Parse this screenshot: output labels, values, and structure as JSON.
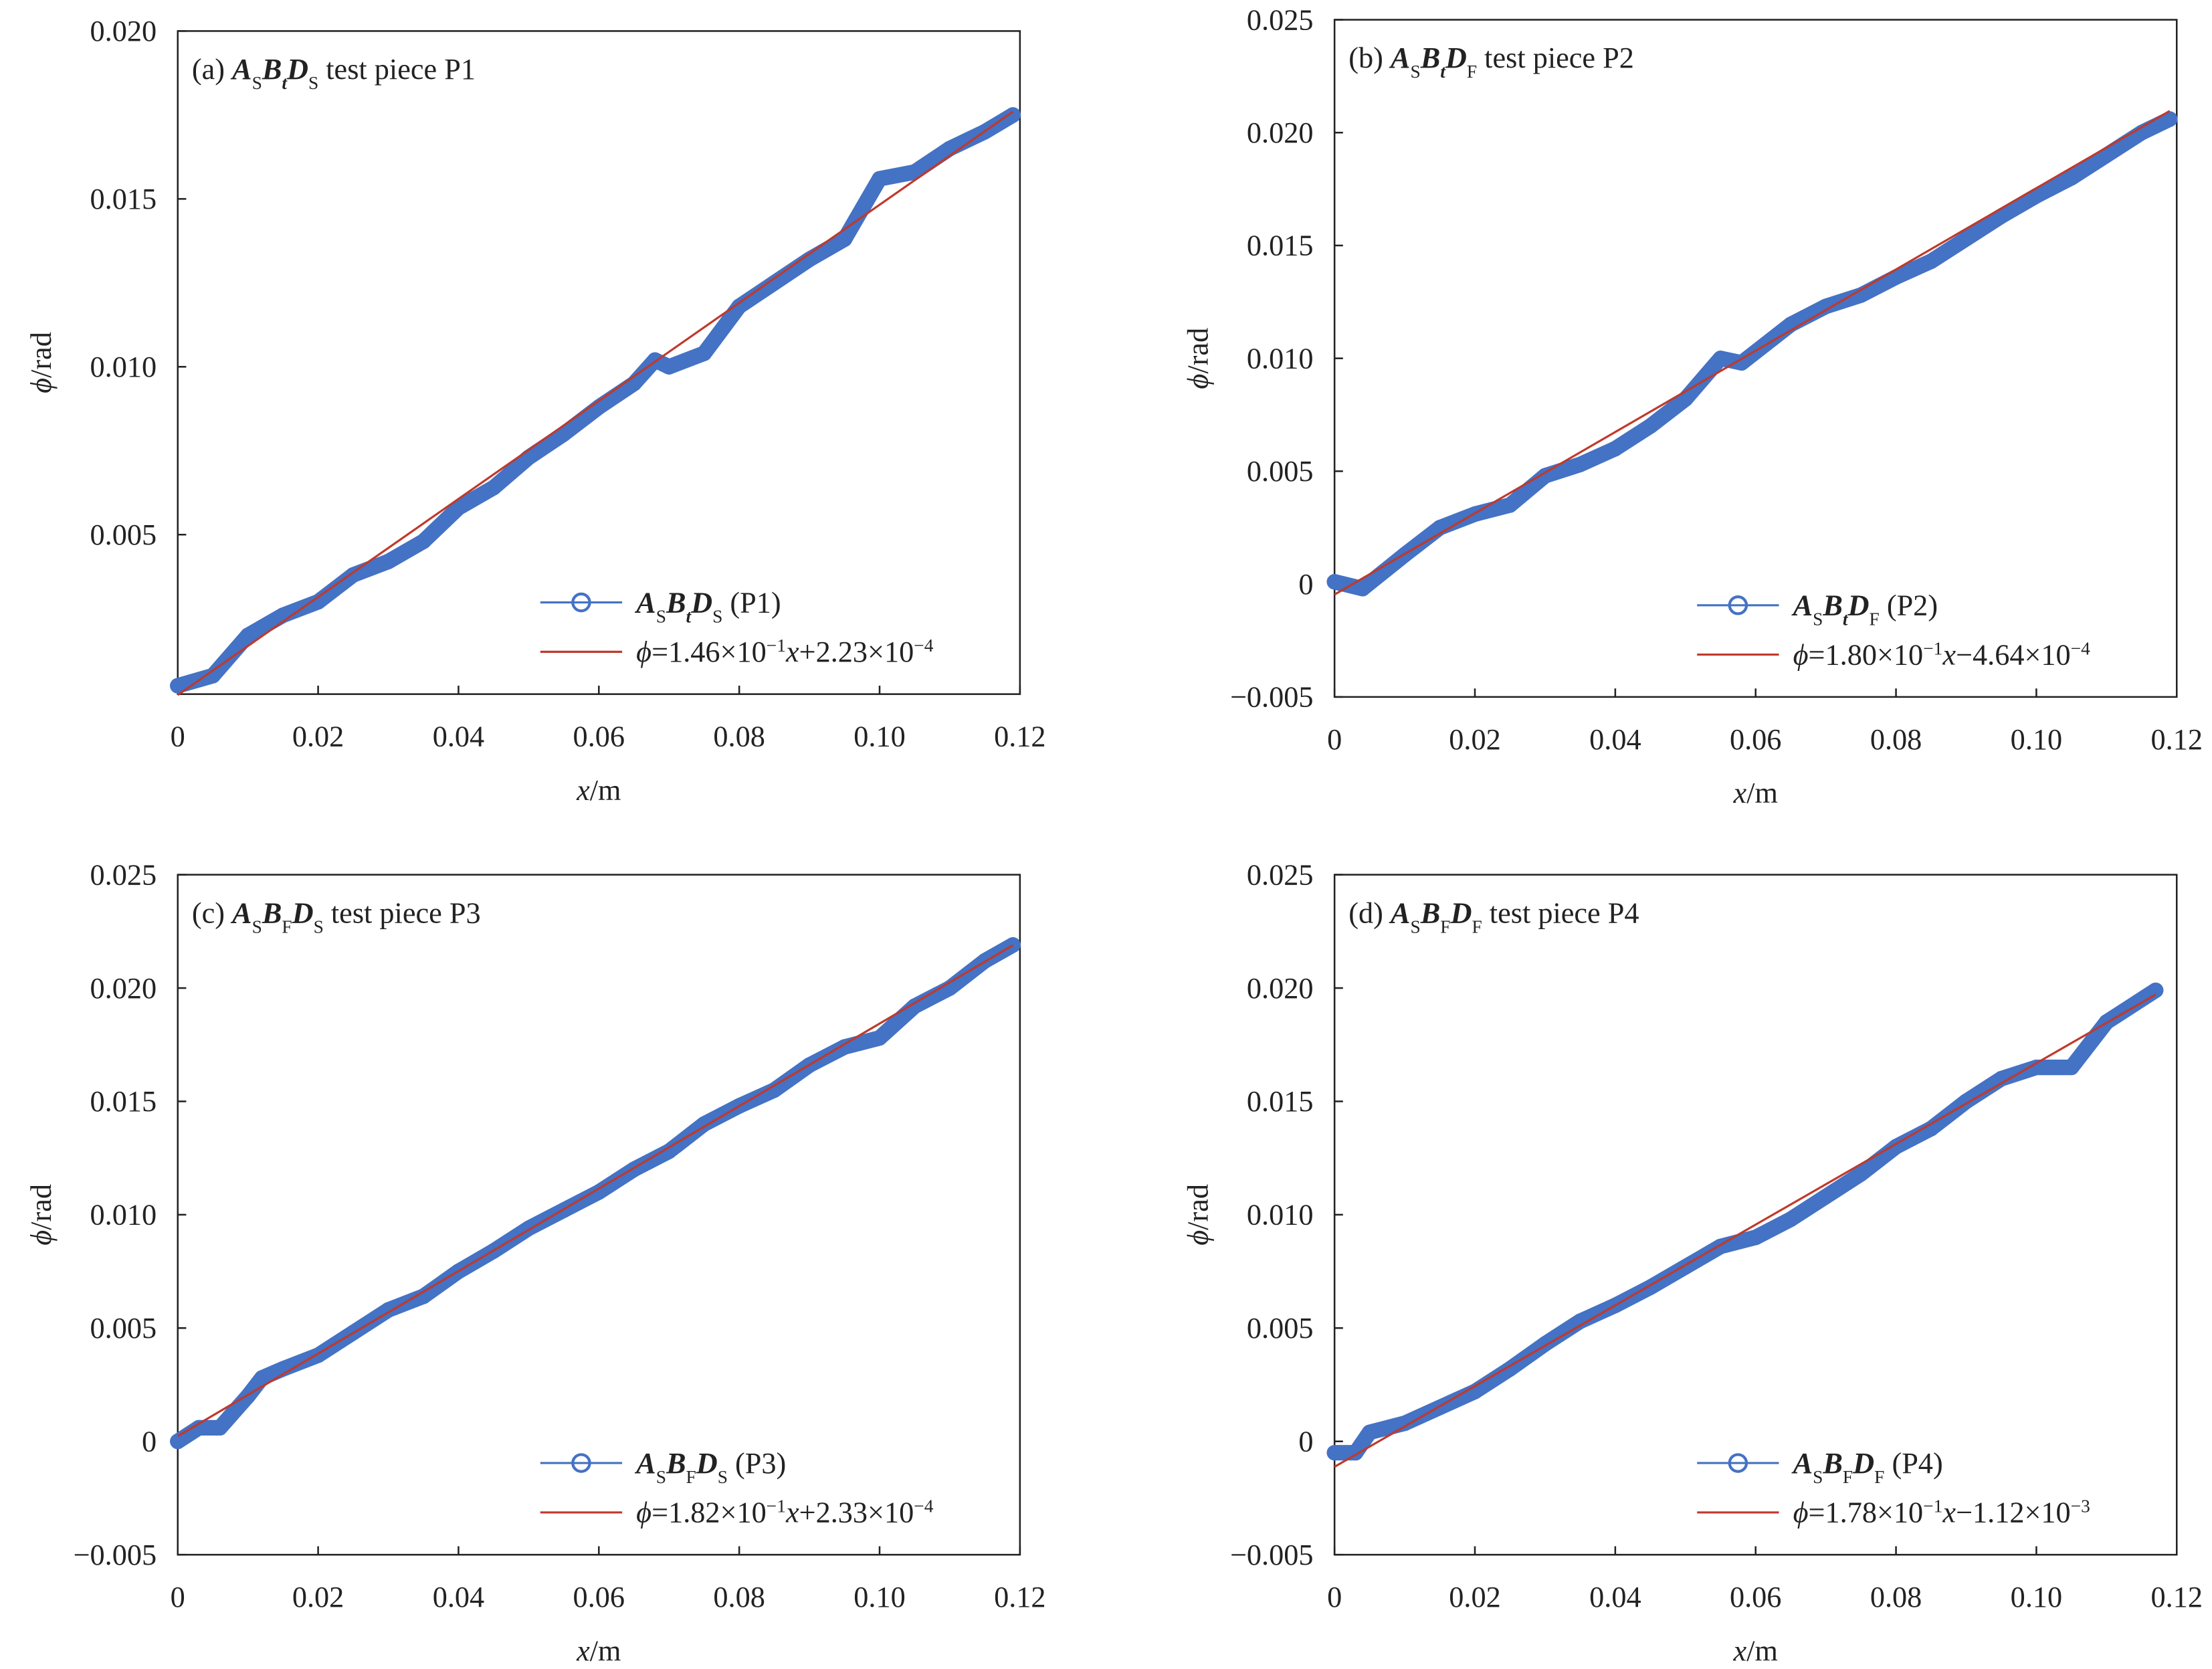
{
  "chart_data": [
    {
      "type": "line",
      "title": [
        {
          "text": "(a) "
        },
        {
          "text": "A",
          "style": "bi"
        },
        {
          "text": "S",
          "style": "sub"
        },
        {
          "text": "B",
          "style": "bi"
        },
        {
          "text": "t",
          "style": "isub"
        },
        {
          "text": "D",
          "style": "bi"
        },
        {
          "text": "S",
          "style": "sub"
        },
        {
          "text": " test piece P1"
        }
      ],
      "xlabel": [
        {
          "text": "x",
          "style": "i"
        },
        {
          "text": "/m"
        }
      ],
      "ylabel": [
        {
          "text": "ϕ",
          "style": "i"
        },
        {
          "text": "/rad"
        }
      ],
      "xlim": [
        0,
        0.12
      ],
      "ylim": [
        0.00025,
        0.02
      ],
      "xticks": [
        0,
        0.02,
        0.04,
        0.06,
        0.08,
        {
          "value": 0.1,
          "label": "0.10"
        },
        0.12
      ],
      "yticks": [
        0.005,
        {
          "value": 0.01,
          "label": "0.010"
        },
        0.015,
        {
          "value": 0.02,
          "label": "0.020"
        }
      ],
      "series": [
        {
          "name": [
            {
              "text": "A",
              "style": "bi"
            },
            {
              "text": "S",
              "style": "sub"
            },
            {
              "text": "B",
              "style": "bi"
            },
            {
              "text": "t",
              "style": "isub"
            },
            {
              "text": "D",
              "style": "bi"
            },
            {
              "text": "S",
              "style": "sub"
            },
            {
              "text": " (P1)"
            }
          ],
          "color": "#4472c4",
          "marker": "circle",
          "x": [
            0,
            0.005,
            0.01,
            0.015,
            0.02,
            0.025,
            0.03,
            0.035,
            0.04,
            0.045,
            0.05,
            0.055,
            0.06,
            0.065,
            0.068,
            0.07,
            0.075,
            0.08,
            0.085,
            0.09,
            0.095,
            0.1,
            0.105,
            0.11,
            0.115,
            0.119
          ],
          "values": [
            0.0005,
            0.0008,
            0.002,
            0.0026,
            0.003,
            0.0038,
            0.0042,
            0.0048,
            0.0058,
            0.0064,
            0.0073,
            0.008,
            0.0088,
            0.0095,
            0.0102,
            0.01,
            0.0104,
            0.0118,
            0.0125,
            0.0132,
            0.0138,
            0.0156,
            0.0158,
            0.0165,
            0.017,
            0.0175
          ]
        },
        {
          "name": [
            {
              "text": "ϕ",
              "style": "i"
            },
            {
              "text": "=1.46×10"
            },
            {
              "text": "−1",
              "style": "sup"
            },
            {
              "text": "x",
              "style": "i"
            },
            {
              "text": "+2.23×10"
            },
            {
              "text": "−4",
              "style": "sup"
            }
          ],
          "color": "#c0392b",
          "x": [
            0,
            0.119
          ],
          "values": [
            0.000223,
            0.0176
          ]
        }
      ]
    },
    {
      "type": "line",
      "title": [
        {
          "text": "(b) "
        },
        {
          "text": "A",
          "style": "bi"
        },
        {
          "text": "S",
          "style": "sub"
        },
        {
          "text": "B",
          "style": "bi"
        },
        {
          "text": "t",
          "style": "isub"
        },
        {
          "text": "D",
          "style": "bi"
        },
        {
          "text": "F",
          "style": "sub"
        },
        {
          "text": " test piece P2"
        }
      ],
      "xlabel": [
        {
          "text": "x",
          "style": "i"
        },
        {
          "text": "/m"
        }
      ],
      "ylabel": [
        {
          "text": "ϕ",
          "style": "i"
        },
        {
          "text": "/rad"
        }
      ],
      "xlim": [
        0,
        0.12
      ],
      "ylim": [
        -0.005,
        0.025
      ],
      "xticks": [
        0,
        0.02,
        0.04,
        0.06,
        0.08,
        {
          "value": 0.1,
          "label": "0.10"
        },
        0.12
      ],
      "yticks": [
        {
          "value": -0.005,
          "label": "−0.005"
        },
        0,
        0.005,
        {
          "value": 0.01,
          "label": "0.010"
        },
        0.015,
        {
          "value": 0.02,
          "label": "0.020"
        },
        0.025
      ],
      "series": [
        {
          "name": [
            {
              "text": "A",
              "style": "bi"
            },
            {
              "text": "S",
              "style": "sub"
            },
            {
              "text": "B",
              "style": "bi"
            },
            {
              "text": "t",
              "style": "isub"
            },
            {
              "text": "D",
              "style": "bi"
            },
            {
              "text": "F",
              "style": "sub"
            },
            {
              "text": " (P2)"
            }
          ],
          "color": "#4472c4",
          "marker": "circle",
          "x": [
            0,
            0.004,
            0.01,
            0.015,
            0.02,
            0.025,
            0.03,
            0.035,
            0.04,
            0.045,
            0.05,
            0.055,
            0.058,
            0.065,
            0.07,
            0.075,
            0.08,
            0.085,
            0.09,
            0.095,
            0.1,
            0.105,
            0.11,
            0.115,
            0.119
          ],
          "values": [
            0.0001,
            -0.0002,
            0.0013,
            0.0025,
            0.0031,
            0.0035,
            0.0048,
            0.0053,
            0.006,
            0.007,
            0.0082,
            0.01,
            0.0098,
            0.0115,
            0.0123,
            0.0128,
            0.0136,
            0.0143,
            0.0153,
            0.0163,
            0.0172,
            0.018,
            0.019,
            0.02,
            0.0206
          ]
        },
        {
          "name": [
            {
              "text": "ϕ",
              "style": "i"
            },
            {
              "text": "=1.80×10"
            },
            {
              "text": "−1",
              "style": "sup"
            },
            {
              "text": "x",
              "style": "i"
            },
            {
              "text": "−4.64×10"
            },
            {
              "text": "−4",
              "style": "sup"
            }
          ],
          "color": "#c0392b",
          "x": [
            0,
            0.119
          ],
          "values": [
            -0.000464,
            0.02096
          ]
        }
      ]
    },
    {
      "type": "line",
      "title": [
        {
          "text": "(c) "
        },
        {
          "text": "A",
          "style": "bi"
        },
        {
          "text": "S",
          "style": "sub"
        },
        {
          "text": "B",
          "style": "bi"
        },
        {
          "text": "F",
          "style": "sub"
        },
        {
          "text": "D",
          "style": "bi"
        },
        {
          "text": "S",
          "style": "sub"
        },
        {
          "text": " test piece P3"
        }
      ],
      "xlabel": [
        {
          "text": "x",
          "style": "i"
        },
        {
          "text": "/m"
        }
      ],
      "ylabel": [
        {
          "text": "ϕ",
          "style": "i"
        },
        {
          "text": "/rad"
        }
      ],
      "xlim": [
        0,
        0.12
      ],
      "ylim": [
        -0.005,
        0.025
      ],
      "xticks": [
        0,
        0.02,
        0.04,
        0.06,
        0.08,
        {
          "value": 0.1,
          "label": "0.10"
        },
        0.12
      ],
      "yticks": [
        {
          "value": -0.005,
          "label": "−0.005"
        },
        0,
        0.005,
        {
          "value": 0.01,
          "label": "0.010"
        },
        0.015,
        {
          "value": 0.02,
          "label": "0.020"
        },
        0.025
      ],
      "series": [
        {
          "name": [
            {
              "text": "A",
              "style": "bi"
            },
            {
              "text": "S",
              "style": "sub"
            },
            {
              "text": "B",
              "style": "bi"
            },
            {
              "text": "F",
              "style": "sub"
            },
            {
              "text": "D",
              "style": "bi"
            },
            {
              "text": "S",
              "style": "sub"
            },
            {
              "text": " (P3)"
            }
          ],
          "color": "#4472c4",
          "marker": "circle",
          "x": [
            0,
            0.003,
            0.006,
            0.01,
            0.012,
            0.015,
            0.02,
            0.025,
            0.03,
            0.035,
            0.04,
            0.045,
            0.05,
            0.055,
            0.06,
            0.065,
            0.07,
            0.075,
            0.08,
            0.085,
            0.09,
            0.095,
            0.1,
            0.105,
            0.11,
            0.115,
            0.119
          ],
          "values": [
            0,
            0.0006,
            0.0006,
            0.002,
            0.0028,
            0.0032,
            0.0038,
            0.0048,
            0.0058,
            0.0064,
            0.0075,
            0.0084,
            0.0094,
            0.0102,
            0.011,
            0.012,
            0.0128,
            0.014,
            0.0148,
            0.0155,
            0.0166,
            0.0174,
            0.0178,
            0.0192,
            0.02,
            0.0212,
            0.0219
          ]
        },
        {
          "name": [
            {
              "text": "ϕ",
              "style": "i"
            },
            {
              "text": "=1.82×10"
            },
            {
              "text": "−1",
              "style": "sup"
            },
            {
              "text": "x",
              "style": "i"
            },
            {
              "text": "+2.33×10"
            },
            {
              "text": "−4",
              "style": "sup"
            }
          ],
          "color": "#c0392b",
          "x": [
            0,
            0.119
          ],
          "values": [
            0.000233,
            0.02189
          ]
        }
      ]
    },
    {
      "type": "line",
      "title": [
        {
          "text": "(d) "
        },
        {
          "text": "A",
          "style": "bi"
        },
        {
          "text": "S",
          "style": "sub"
        },
        {
          "text": "B",
          "style": "bi"
        },
        {
          "text": "F",
          "style": "sub"
        },
        {
          "text": "D",
          "style": "bi"
        },
        {
          "text": "F",
          "style": "sub"
        },
        {
          "text": " test piece P4"
        }
      ],
      "xlabel": [
        {
          "text": "x",
          "style": "i"
        },
        {
          "text": "/m"
        }
      ],
      "ylabel": [
        {
          "text": "ϕ",
          "style": "i"
        },
        {
          "text": "/rad"
        }
      ],
      "xlim": [
        0,
        0.12
      ],
      "ylim": [
        -0.005,
        0.025
      ],
      "xticks": [
        0,
        0.02,
        0.04,
        0.06,
        0.08,
        {
          "value": 0.1,
          "label": "0.10"
        },
        0.12
      ],
      "yticks": [
        {
          "value": -0.005,
          "label": "−0.005"
        },
        0,
        0.005,
        {
          "value": 0.01,
          "label": "0.010"
        },
        0.015,
        {
          "value": 0.02,
          "label": "0.020"
        },
        0.025
      ],
      "series": [
        {
          "name": [
            {
              "text": "A",
              "style": "bi"
            },
            {
              "text": "S",
              "style": "sub"
            },
            {
              "text": "B",
              "style": "bi"
            },
            {
              "text": "F",
              "style": "sub"
            },
            {
              "text": "D",
              "style": "bi"
            },
            {
              "text": "F",
              "style": "sub"
            },
            {
              "text": " (P4)"
            }
          ],
          "color": "#4472c4",
          "marker": "circle",
          "x": [
            0,
            0.003,
            0.005,
            0.01,
            0.015,
            0.02,
            0.025,
            0.03,
            0.035,
            0.04,
            0.045,
            0.05,
            0.055,
            0.06,
            0.065,
            0.07,
            0.075,
            0.08,
            0.085,
            0.09,
            0.095,
            0.1,
            0.105,
            0.11,
            0.117
          ],
          "values": [
            -0.0005,
            -0.0005,
            0.0004,
            0.0008,
            0.0015,
            0.0022,
            0.0032,
            0.0043,
            0.0053,
            0.006,
            0.0068,
            0.0077,
            0.0086,
            0.009,
            0.0098,
            0.0108,
            0.0118,
            0.013,
            0.0138,
            0.015,
            0.016,
            0.0165,
            0.0165,
            0.0185,
            0.0199
          ]
        },
        {
          "name": [
            {
              "text": "ϕ",
              "style": "i"
            },
            {
              "text": "=1.78×10"
            },
            {
              "text": "−1",
              "style": "sup"
            },
            {
              "text": "x",
              "style": "i"
            },
            {
              "text": "−1.12×10"
            },
            {
              "text": "−3",
              "style": "sup"
            }
          ],
          "color": "#c0392b",
          "x": [
            0,
            0.117
          ],
          "values": [
            -0.00112,
            0.01971
          ]
        }
      ]
    }
  ]
}
